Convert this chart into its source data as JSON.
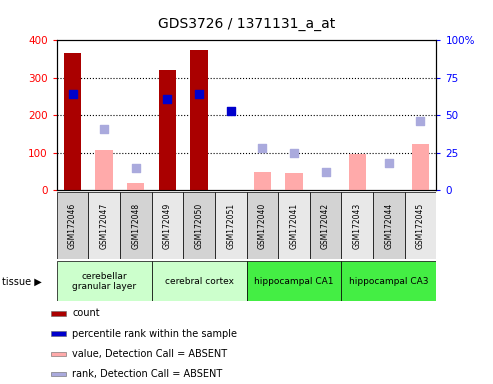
{
  "title": "GDS3726 / 1371131_a_at",
  "samples": [
    "GSM172046",
    "GSM172047",
    "GSM172048",
    "GSM172049",
    "GSM172050",
    "GSM172051",
    "GSM172040",
    "GSM172041",
    "GSM172042",
    "GSM172043",
    "GSM172044",
    "GSM172045"
  ],
  "count_present": [
    365,
    0,
    0,
    320,
    375,
    0,
    0,
    0,
    0,
    0,
    0,
    0
  ],
  "count_absent": [
    0,
    107,
    20,
    0,
    0,
    0,
    47,
    46,
    0,
    97,
    0,
    123
  ],
  "rank_present": [
    64,
    0,
    0,
    61,
    64,
    53,
    0,
    0,
    0,
    0,
    0,
    0
  ],
  "rank_absent": [
    0,
    41,
    15,
    0,
    0,
    0,
    28,
    25,
    12,
    0,
    18,
    46
  ],
  "tissues": [
    {
      "label": "cerebellar\ngranular layer",
      "color": "#ccffcc",
      "start": 0,
      "end": 3
    },
    {
      "label": "cerebral cortex",
      "color": "#ccffcc",
      "start": 3,
      "end": 6
    },
    {
      "label": "hippocampal CA1",
      "color": "#44ee44",
      "start": 6,
      "end": 9
    },
    {
      "label": "hippocampal CA3",
      "color": "#44ee44",
      "start": 9,
      "end": 12
    }
  ],
  "ylim_left": [
    0,
    400
  ],
  "ylim_right": [
    0,
    100
  ],
  "yticks_left": [
    0,
    100,
    200,
    300,
    400
  ],
  "yticks_right": [
    0,
    25,
    50,
    75,
    100
  ],
  "yticklabels_right": [
    "0",
    "25",
    "50",
    "75",
    "100%"
  ],
  "bar_width": 0.55,
  "rank_marker_size": 30,
  "count_color_present": "#aa0000",
  "count_color_absent": "#ffaaaa",
  "rank_color_present": "#0000cc",
  "rank_color_absent": "#aaaadd",
  "legend_items": [
    {
      "label": "count",
      "color": "#aa0000"
    },
    {
      "label": "percentile rank within the sample",
      "color": "#0000cc"
    },
    {
      "label": "value, Detection Call = ABSENT",
      "color": "#ffaaaa"
    },
    {
      "label": "rank, Detection Call = ABSENT",
      "color": "#aaaadd"
    }
  ]
}
